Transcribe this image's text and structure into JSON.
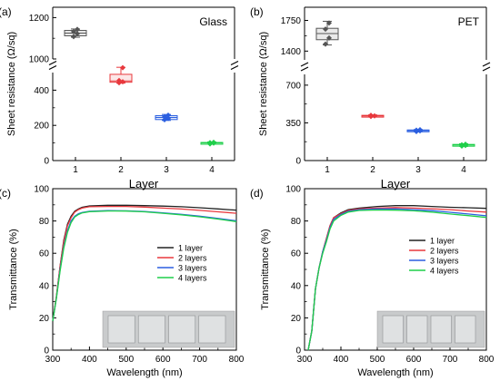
{
  "chart_data": [
    {
      "panel": "(a)",
      "type": "box",
      "annotation": "Glass",
      "xlabel": "Layer",
      "ylabel": "Sheet resistance (Ω/sq)",
      "categories": [
        "1",
        "2",
        "3",
        "4"
      ],
      "axis_break": {
        "lower": [
          0,
          500
        ],
        "upper": [
          1000,
          1250
        ]
      },
      "yticks": [
        "0",
        "200",
        "400",
        "1000",
        "1200"
      ],
      "colors": [
        "#555555",
        "#e8383d",
        "#2b5fe0",
        "#1fcf4a"
      ],
      "boxes": [
        {
          "category": "1",
          "q1": 1112,
          "median": 1125,
          "q3": 1138,
          "whisker_low": 1105,
          "whisker_high": 1145,
          "points": [
            1108,
            1122,
            1132,
            1143
          ]
        },
        {
          "category": "2",
          "q1": 445,
          "median": 452,
          "q3": 490,
          "whisker_low": 440,
          "whisker_high": 530,
          "points": [
            442,
            448,
            455,
            528
          ]
        },
        {
          "category": "3",
          "q1": 233,
          "median": 245,
          "q3": 255,
          "whisker_low": 228,
          "whisker_high": 262,
          "points": [
            232,
            240,
            248,
            258
          ]
        },
        {
          "category": "4",
          "q1": 96,
          "median": 100,
          "q3": 103,
          "whisker_low": 93,
          "whisker_high": 106,
          "points": [
            95,
            99,
            102,
            104
          ]
        }
      ]
    },
    {
      "panel": "(b)",
      "type": "box",
      "annotation": "PET",
      "xlabel": "Layer",
      "ylabel": "Sheet resistance (Ω/sq)",
      "categories": [
        "1",
        "2",
        "3",
        "4"
      ],
      "axis_break": {
        "lower": [
          0,
          800
        ],
        "upper": [
          1300,
          1900
        ]
      },
      "yticks": [
        "0",
        "350",
        "700",
        "1400",
        "1750"
      ],
      "colors": [
        "#555555",
        "#e8383d",
        "#2b5fe0",
        "#1fcf4a"
      ],
      "boxes": [
        {
          "category": "1",
          "q1": 1530,
          "median": 1600,
          "q3": 1660,
          "whisker_low": 1470,
          "whisker_high": 1740,
          "points": [
            1480,
            1550,
            1650,
            1720
          ]
        },
        {
          "category": "2",
          "q1": 408,
          "median": 414,
          "q3": 420,
          "whisker_low": 405,
          "whisker_high": 424,
          "points": [
            410,
            415,
            420
          ]
        },
        {
          "category": "3",
          "q1": 272,
          "median": 278,
          "q3": 284,
          "whisker_low": 268,
          "whisker_high": 288,
          "points": [
            270,
            276,
            282,
            286
          ]
        },
        {
          "category": "4",
          "q1": 138,
          "median": 144,
          "q3": 150,
          "whisker_low": 132,
          "whisker_high": 156,
          "points": [
            135,
            140,
            146,
            152
          ]
        }
      ]
    },
    {
      "panel": "(c)",
      "type": "line",
      "xlabel": "Wavelength (nm)",
      "ylabel": "Transmittance (%)",
      "xlim": [
        300,
        800
      ],
      "ylim": [
        0,
        100
      ],
      "xticks": [
        "300",
        "400",
        "500",
        "600",
        "700",
        "800"
      ],
      "yticks": [
        "0",
        "20",
        "40",
        "60",
        "80",
        "100"
      ],
      "legend_position": "right",
      "series": [
        {
          "name": "1 layer",
          "color": "#222222",
          "x": [
            300,
            310,
            320,
            330,
            340,
            350,
            360,
            370,
            380,
            400,
            450,
            500,
            550,
            600,
            650,
            700,
            750,
            800
          ],
          "y": [
            18,
            33,
            52,
            68,
            78,
            83,
            86,
            87.5,
            88.5,
            89.3,
            89.7,
            89.7,
            89.5,
            89.2,
            88.8,
            88.2,
            87.5,
            86.7
          ]
        },
        {
          "name": "2 layers",
          "color": "#e8383d",
          "x": [
            300,
            310,
            320,
            330,
            340,
            350,
            360,
            370,
            380,
            400,
            450,
            500,
            550,
            600,
            650,
            700,
            750,
            800
          ],
          "y": [
            18,
            33,
            52,
            67,
            77,
            82,
            85.5,
            87,
            88,
            88.8,
            89,
            89,
            88.6,
            88,
            87.4,
            86.6,
            85.7,
            84.8
          ]
        },
        {
          "name": "3 layers",
          "color": "#2b5fe0",
          "x": [
            300,
            310,
            320,
            330,
            340,
            350,
            360,
            370,
            380,
            400,
            450,
            500,
            550,
            600,
            650,
            700,
            750,
            800
          ],
          "y": [
            18,
            32,
            50,
            64,
            74,
            80,
            83,
            84.5,
            85.3,
            86,
            86.4,
            86.3,
            85.9,
            85,
            84.1,
            83,
            81.6,
            80.1
          ]
        },
        {
          "name": "4 layers",
          "color": "#1fcf4a",
          "x": [
            300,
            310,
            320,
            330,
            340,
            350,
            360,
            370,
            380,
            400,
            450,
            500,
            550,
            600,
            650,
            700,
            750,
            800
          ],
          "y": [
            18,
            32,
            49,
            63,
            73,
            79,
            82.5,
            84,
            85,
            85.8,
            86.2,
            86.1,
            85.7,
            84.8,
            83.8,
            82.6,
            81.2,
            79.6
          ]
        }
      ]
    },
    {
      "panel": "(d)",
      "type": "line",
      "xlabel": "Wavelength (nm)",
      "ylabel": "Transmittance (%)",
      "xlim": [
        300,
        800
      ],
      "ylim": [
        0,
        100
      ],
      "xticks": [
        "300",
        "400",
        "500",
        "600",
        "700",
        "800"
      ],
      "yticks": [
        "0",
        "20",
        "40",
        "60",
        "80",
        "100"
      ],
      "legend_position": "right",
      "series": [
        {
          "name": "1 layer",
          "color": "#222222",
          "x": [
            310,
            320,
            330,
            340,
            350,
            360,
            370,
            380,
            400,
            420,
            450,
            500,
            550,
            600,
            650,
            700,
            750,
            800
          ],
          "y": [
            0,
            12,
            38,
            51,
            61,
            69,
            77,
            82,
            85,
            87,
            88,
            89,
            89.5,
            89.5,
            89,
            88.5,
            88.2,
            87.8
          ]
        },
        {
          "name": "2 layers",
          "color": "#e8383d",
          "x": [
            310,
            320,
            330,
            340,
            350,
            360,
            370,
            380,
            400,
            420,
            450,
            500,
            550,
            600,
            650,
            700,
            750,
            800
          ],
          "y": [
            0,
            12,
            38,
            51,
            61,
            69,
            77,
            82,
            84.5,
            86.5,
            87.5,
            88,
            88.3,
            88,
            87.6,
            87,
            86.2,
            85.5
          ]
        },
        {
          "name": "3 layers",
          "color": "#2b5fe0",
          "x": [
            310,
            320,
            330,
            340,
            350,
            360,
            370,
            380,
            400,
            420,
            450,
            500,
            550,
            600,
            650,
            700,
            750,
            800
          ],
          "y": [
            0,
            12,
            38,
            51,
            61,
            68,
            76,
            81,
            84,
            86,
            87,
            87.5,
            87.5,
            87,
            86.4,
            85.4,
            84.3,
            83.2
          ]
        },
        {
          "name": "4 layers",
          "color": "#1fcf4a",
          "x": [
            310,
            320,
            330,
            340,
            350,
            360,
            370,
            380,
            400,
            420,
            450,
            500,
            550,
            600,
            650,
            700,
            750,
            800
          ],
          "y": [
            0,
            12,
            38,
            51,
            60,
            67,
            75,
            80,
            83.5,
            85.5,
            86.5,
            86.8,
            86.7,
            86.3,
            85.5,
            84.3,
            83.3,
            82.2
          ]
        }
      ]
    }
  ]
}
